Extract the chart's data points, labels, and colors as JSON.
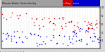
{
  "title_gray_text": "Milwaukee Weather  Outdoor Humidity",
  "title_red_text": "vs Temp",
  "title_blue_text": "erature",
  "background_color": "#d8d8d8",
  "plot_bg": "#ffffff",
  "blue_color": "#0000dd",
  "red_color": "#dd0000",
  "title_bar_gray_color": "#a0a0a0",
  "title_bar_red_color": "#cc0000",
  "title_bar_blue_color": "#0000cc",
  "dot_size": 1.2,
  "seed": 42,
  "n_blue": 80,
  "n_red": 70,
  "grid_color": "#bbbbbb",
  "ytick_labels_right": [
    "100",
    "80",
    "60",
    "40",
    "20"
  ],
  "ytick_vals_right": [
    1.0,
    0.8,
    0.6,
    0.4,
    0.2
  ]
}
